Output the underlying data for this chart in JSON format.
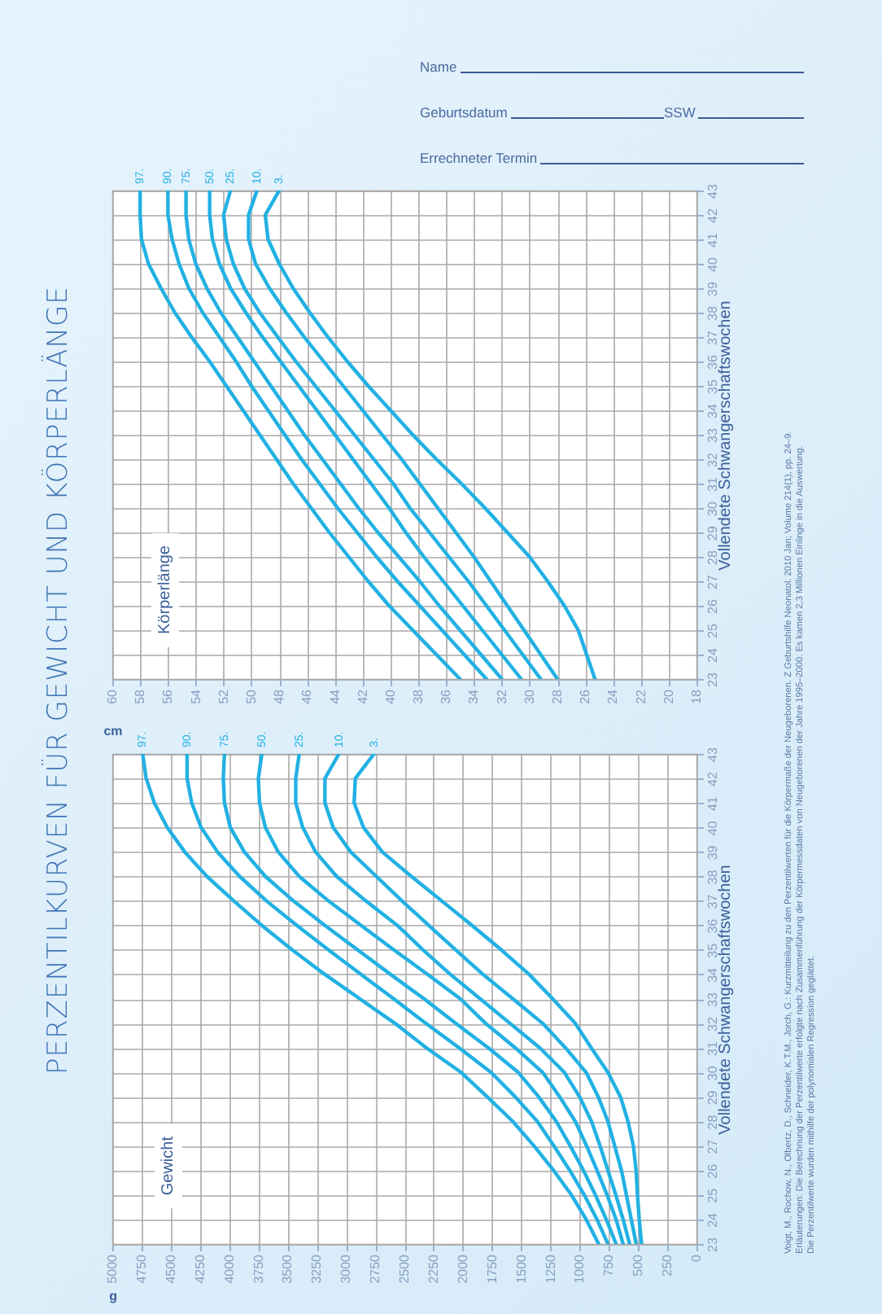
{
  "chart_data": [
    {
      "type": "line",
      "title": "PERZENTILKURVEN FÜR GEWICHT UND KÖRPERLÄNGE",
      "xlabel": "g",
      "ylabel": "Vollendete Schwangerschaftswochen",
      "xlim": [
        5000,
        0
      ],
      "xticks": [
        5000,
        4750,
        4500,
        4250,
        4000,
        3750,
        3500,
        3250,
        3000,
        2750,
        2500,
        2250,
        2000,
        1750,
        1500,
        1250,
        1000,
        750,
        500,
        250,
        0
      ],
      "ylim": [
        23,
        43
      ],
      "yticks": [
        23,
        24,
        25,
        26,
        27,
        28,
        29,
        30,
        31,
        32,
        33,
        34,
        35,
        36,
        37,
        38,
        39,
        40,
        41,
        42,
        43
      ],
      "grid": true,
      "series": [
        {
          "name": "97.",
          "color": "#22b1e3",
          "x": [
            837,
            944,
            1070,
            1223,
            1390,
            1572,
            1790,
            2014,
            2310,
            2580,
            2880,
            3180,
            3460,
            3720,
            3960,
            4190,
            4380,
            4530,
            4640,
            4710,
            4740
          ],
          "values": [
            23,
            24,
            25,
            26,
            27,
            28,
            29,
            30,
            31,
            32,
            33,
            34,
            35,
            36,
            37,
            38,
            39,
            40,
            41,
            42,
            43
          ]
        },
        {
          "name": "90.",
          "color": "#22b1e3",
          "x": [
            758,
            851,
            960,
            1084,
            1220,
            1362,
            1550,
            1758,
            2030,
            2316,
            2590,
            2870,
            3150,
            3420,
            3680,
            3910,
            4100,
            4240,
            4320,
            4360,
            4360
          ],
          "values": [
            23,
            24,
            25,
            26,
            27,
            28,
            29,
            30,
            31,
            32,
            33,
            34,
            35,
            36,
            37,
            38,
            39,
            40,
            41,
            42,
            43
          ]
        },
        {
          "name": "75.",
          "color": "#22b1e3",
          "x": [
            688,
            772,
            865,
            967,
            1080,
            1200,
            1350,
            1525,
            1780,
            2060,
            2330,
            2618,
            2900,
            3180,
            3450,
            3690,
            3870,
            3990,
            4040,
            4050,
            4040
          ],
          "values": [
            23,
            24,
            25,
            26,
            27,
            28,
            29,
            30,
            31,
            32,
            33,
            34,
            35,
            36,
            37,
            38,
            39,
            40,
            41,
            42,
            43
          ]
        },
        {
          "name": "50.",
          "color": "#22b1e3",
          "x": [
            628,
            688,
            765,
            851,
            940,
            1037,
            1170,
            1316,
            1550,
            1804,
            2020,
            2300,
            2590,
            2870,
            3150,
            3400,
            3580,
            3690,
            3740,
            3750,
            3720
          ],
          "values": [
            23,
            24,
            25,
            26,
            27,
            28,
            29,
            30,
            31,
            32,
            33,
            34,
            35,
            36,
            37,
            38,
            39,
            40,
            41,
            42,
            43
          ]
        },
        {
          "name": "25.",
          "color": "#22b1e3",
          "x": [
            572,
            628,
            690,
            758,
            825,
            898,
            1000,
            1130,
            1340,
            1595,
            1850,
            2106,
            2340,
            2560,
            2830,
            3080,
            3260,
            3370,
            3430,
            3430,
            3400
          ],
          "values": [
            23,
            24,
            25,
            26,
            27,
            28,
            29,
            30,
            31,
            32,
            33,
            34,
            35,
            36,
            37,
            38,
            39,
            40,
            41,
            42,
            43
          ]
        },
        {
          "name": "10.",
          "color": "#22b1e3",
          "x": [
            516,
            558,
            600,
            642,
            700,
            758,
            840,
            944,
            1120,
            1316,
            1570,
            1827,
            2060,
            2292,
            2520,
            2740,
            2960,
            3110,
            3180,
            3180,
            3060
          ],
          "values": [
            23,
            24,
            25,
            26,
            27,
            28,
            29,
            30,
            31,
            32,
            33,
            34,
            35,
            36,
            37,
            38,
            39,
            40,
            41,
            42,
            43
          ]
        },
        {
          "name": "3.",
          "color": "#22b1e3",
          "x": [
            470,
            490,
            505,
            517,
            540,
            586,
            650,
            758,
            900,
            1037,
            1230,
            1432,
            1670,
            1921,
            2180,
            2440,
            2690,
            2850,
            2930,
            2920,
            2760
          ],
          "values": [
            23,
            24,
            25,
            26,
            27,
            28,
            29,
            30,
            31,
            32,
            33,
            34,
            35,
            36,
            37,
            38,
            39,
            40,
            41,
            42,
            43
          ]
        }
      ],
      "annotations": [
        "Gewicht",
        "Voigt, M., Rochow, N., Olbertz, D., Schneider, K.T.M., Jorch, G.: Kurzmitteilung zu den Perzentilwerten für die Körpermaße der Neugeborenen. Z Geburtshilfe Neonatol. 2010 Jan; Volume 214(1), pp. 24–9.",
        "Erläuterungen: Die Berechnung der Perzentilwerte erfolgte nach Zusammenführung der Körpermessdaten von Neugeborenen der Jahre 1995–2000. Es kamen 2,3 Millionen Einlinge in die Auswertung.",
        "Die Perzentilwerte wurden mithilfe der polynomialen Regression geglättet."
      ]
    },
    {
      "type": "line",
      "xlabel": "cm",
      "ylabel": "Vollendete Schwangerschaftswochen",
      "xlim": [
        60,
        18
      ],
      "xticks": [
        60,
        58,
        56,
        54,
        52,
        50,
        48,
        46,
        44,
        42,
        40,
        38,
        36,
        34,
        32,
        30,
        28,
        26,
        24,
        22,
        20,
        18
      ],
      "ylim": [
        23,
        43
      ],
      "yticks": [
        23,
        24,
        25,
        26,
        27,
        28,
        29,
        30,
        31,
        32,
        33,
        34,
        35,
        36,
        37,
        38,
        39,
        40,
        41,
        42,
        43
      ],
      "grid": true,
      "series": [
        {
          "name": "97.",
          "color": "#22b1e3",
          "x": [
            35.0,
            36.7,
            38.4,
            40.1,
            41.6,
            43.0,
            44.4,
            45.7,
            47.0,
            48.2,
            49.4,
            50.6,
            51.8,
            53.0,
            54.3,
            55.5,
            56.5,
            57.4,
            57.9,
            58.0,
            58.0
          ],
          "values": [
            23,
            24,
            25,
            26,
            27,
            28,
            29,
            30,
            31,
            32,
            33,
            34,
            35,
            36,
            37,
            38,
            39,
            40,
            41,
            42,
            43
          ]
        },
        {
          "name": "90.",
          "color": "#22b1e3",
          "x": [
            33.1,
            34.7,
            36.3,
            37.9,
            39.5,
            41.0,
            42.4,
            43.8,
            45.1,
            46.4,
            47.6,
            48.8,
            50.0,
            51.1,
            52.3,
            53.5,
            54.5,
            55.2,
            55.7,
            56.0,
            56.0
          ],
          "values": [
            23,
            24,
            25,
            26,
            27,
            28,
            29,
            30,
            31,
            32,
            33,
            34,
            35,
            36,
            37,
            38,
            39,
            40,
            41,
            42,
            43
          ]
        },
        {
          "name": "75.",
          "color": "#22b1e3",
          "x": [
            32.0,
            33.5,
            35.0,
            36.5,
            37.9,
            39.4,
            40.9,
            42.3,
            43.6,
            44.9,
            46.2,
            47.4,
            48.6,
            49.8,
            51.0,
            52.2,
            53.2,
            54.0,
            54.5,
            54.7,
            54.7
          ],
          "values": [
            23,
            24,
            25,
            26,
            27,
            28,
            29,
            30,
            31,
            32,
            33,
            34,
            35,
            36,
            37,
            38,
            39,
            40,
            41,
            42,
            43
          ]
        },
        {
          "name": "50.",
          "color": "#22b1e3",
          "x": [
            30.6,
            32.0,
            33.4,
            34.8,
            36.2,
            37.6,
            38.9,
            40.1,
            41.4,
            42.7,
            44.0,
            45.3,
            46.6,
            47.9,
            49.2,
            50.4,
            51.5,
            52.3,
            52.8,
            53.0,
            53.0
          ],
          "values": [
            23,
            24,
            25,
            26,
            27,
            28,
            29,
            30,
            31,
            32,
            33,
            34,
            35,
            36,
            37,
            38,
            39,
            40,
            41,
            42,
            43
          ]
        },
        {
          "name": "25.",
          "color": "#22b1e3",
          "x": [
            29.2,
            30.5,
            31.8,
            33.1,
            34.4,
            35.8,
            37.2,
            38.6,
            39.8,
            41.2,
            42.6,
            44.0,
            45.4,
            46.8,
            48.1,
            49.4,
            50.5,
            51.3,
            51.8,
            52.0,
            51.5
          ],
          "values": [
            23,
            24,
            25,
            26,
            27,
            28,
            29,
            30,
            31,
            32,
            33,
            34,
            35,
            36,
            37,
            38,
            39,
            40,
            41,
            42,
            43
          ]
        },
        {
          "name": "10.",
          "color": "#22b1e3",
          "x": [
            28.0,
            29.2,
            30.4,
            31.6,
            32.8,
            34.0,
            35.3,
            36.6,
            37.9,
            39.2,
            40.6,
            42.0,
            43.4,
            44.8,
            46.2,
            47.5,
            48.7,
            49.7,
            50.2,
            50.2,
            49.6
          ],
          "values": [
            23,
            24,
            25,
            26,
            27,
            28,
            29,
            30,
            31,
            32,
            33,
            34,
            35,
            36,
            37,
            38,
            39,
            40,
            41,
            42,
            43
          ]
        },
        {
          "name": "3.",
          "color": "#22b1e3",
          "x": [
            25.3,
            25.9,
            26.5,
            27.5,
            28.7,
            30.0,
            31.6,
            33.2,
            34.9,
            36.7,
            38.4,
            40.0,
            41.6,
            43.1,
            44.5,
            45.8,
            47.0,
            48.0,
            48.8,
            49.0,
            48.0
          ],
          "values": [
            23,
            24,
            25,
            26,
            27,
            28,
            29,
            30,
            31,
            32,
            33,
            34,
            35,
            36,
            37,
            38,
            39,
            40,
            41,
            42,
            43
          ]
        }
      ],
      "annotations": [
        "Körperlänge"
      ]
    },
    {
      "type": "other",
      "annotations": [
        "Name",
        "Geburtsdatum",
        "SSW",
        "Errechneter Termin"
      ]
    }
  ]
}
